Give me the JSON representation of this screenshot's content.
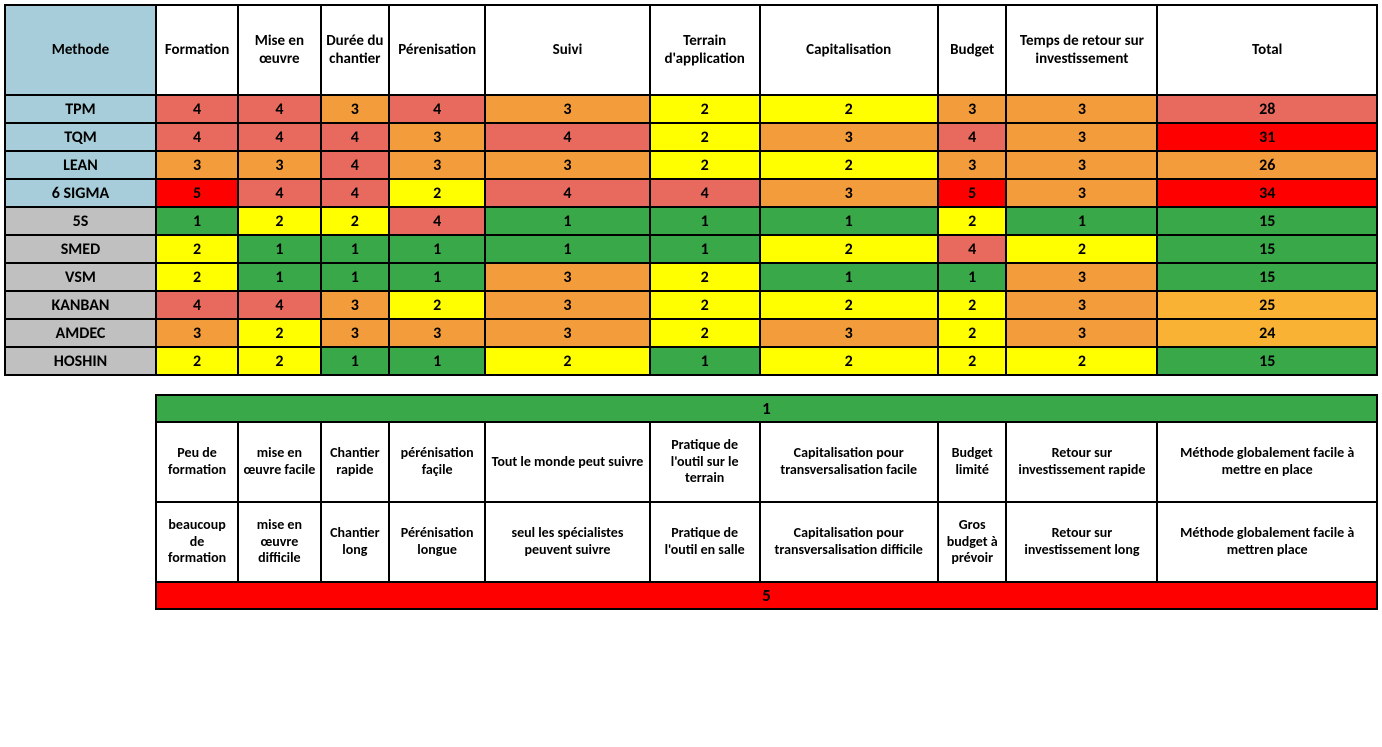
{
  "palette": {
    "header_methode": "#a6cdd9",
    "row_label_blue": "#a6cdd9",
    "row_label_grey": "#c0c0c0",
    "green": "#39a849",
    "yellow": "#ffff00",
    "orange": "#f39c3c",
    "salmon": "#e86a5e",
    "red": "#ff0000",
    "total_amber": "#f9b233",
    "white": "#ffffff"
  },
  "table": {
    "type": "table",
    "col_widths_pct": [
      11,
      6,
      6,
      5,
      7,
      12,
      8,
      13,
      5,
      11,
      16
    ],
    "headers": [
      "Methode",
      "Formation",
      "Mise en œuvre",
      "Durée du chantier",
      "Pérenisation",
      "Suivi",
      "Terrain d'application",
      "Capitalisation",
      "Budget",
      "Temps de retour sur investissement",
      "Total"
    ],
    "header_bg": [
      "header_methode",
      "white",
      "white",
      "white",
      "white",
      "white",
      "white",
      "white",
      "white",
      "white",
      "white"
    ],
    "rows": [
      {
        "label": "TPM",
        "label_bg": "row_label_blue",
        "cells": [
          4,
          4,
          3,
          4,
          3,
          2,
          2,
          3,
          3,
          28
        ],
        "cell_bg": [
          "salmon",
          "salmon",
          "orange",
          "salmon",
          "orange",
          "yellow",
          "yellow",
          "orange",
          "orange",
          "salmon"
        ]
      },
      {
        "label": "TQM",
        "label_bg": "row_label_blue",
        "cells": [
          4,
          4,
          4,
          3,
          4,
          2,
          3,
          4,
          3,
          31
        ],
        "cell_bg": [
          "salmon",
          "salmon",
          "salmon",
          "orange",
          "salmon",
          "yellow",
          "orange",
          "salmon",
          "orange",
          "red"
        ]
      },
      {
        "label": "LEAN",
        "label_bg": "row_label_blue",
        "cells": [
          3,
          3,
          4,
          3,
          3,
          2,
          2,
          3,
          3,
          26
        ],
        "cell_bg": [
          "orange",
          "orange",
          "salmon",
          "orange",
          "orange",
          "yellow",
          "yellow",
          "orange",
          "orange",
          "orange"
        ]
      },
      {
        "label": "6 SIGMA",
        "label_bg": "row_label_blue",
        "cells": [
          5,
          4,
          4,
          2,
          4,
          4,
          3,
          5,
          3,
          34
        ],
        "cell_bg": [
          "red",
          "salmon",
          "salmon",
          "yellow",
          "salmon",
          "salmon",
          "orange",
          "red",
          "orange",
          "red"
        ]
      },
      {
        "label": "5S",
        "label_bg": "row_label_grey",
        "cells": [
          1,
          2,
          2,
          4,
          1,
          1,
          1,
          2,
          1,
          15
        ],
        "cell_bg": [
          "green",
          "yellow",
          "yellow",
          "salmon",
          "green",
          "green",
          "green",
          "yellow",
          "green",
          "green"
        ]
      },
      {
        "label": "SMED",
        "label_bg": "row_label_grey",
        "cells": [
          2,
          1,
          1,
          1,
          1,
          1,
          2,
          4,
          2,
          15
        ],
        "cell_bg": [
          "yellow",
          "green",
          "green",
          "green",
          "green",
          "green",
          "yellow",
          "salmon",
          "yellow",
          "green"
        ]
      },
      {
        "label": "VSM",
        "label_bg": "row_label_grey",
        "cells": [
          2,
          1,
          1,
          1,
          3,
          2,
          1,
          1,
          3,
          15
        ],
        "cell_bg": [
          "yellow",
          "green",
          "green",
          "green",
          "orange",
          "yellow",
          "green",
          "green",
          "orange",
          "green"
        ]
      },
      {
        "label": "KANBAN",
        "label_bg": "row_label_grey",
        "cells": [
          4,
          4,
          3,
          2,
          3,
          2,
          2,
          2,
          3,
          25
        ],
        "cell_bg": [
          "salmon",
          "salmon",
          "orange",
          "yellow",
          "orange",
          "yellow",
          "yellow",
          "yellow",
          "orange",
          "total_amber"
        ]
      },
      {
        "label": "AMDEC",
        "label_bg": "row_label_grey",
        "cells": [
          3,
          2,
          3,
          3,
          3,
          2,
          3,
          2,
          3,
          24
        ],
        "cell_bg": [
          "orange",
          "yellow",
          "orange",
          "orange",
          "orange",
          "yellow",
          "orange",
          "yellow",
          "orange",
          "total_amber"
        ]
      },
      {
        "label": "HOSHIN",
        "label_bg": "row_label_grey",
        "cells": [
          2,
          2,
          1,
          1,
          2,
          1,
          2,
          2,
          2,
          15
        ],
        "cell_bg": [
          "yellow",
          "yellow",
          "green",
          "green",
          "yellow",
          "green",
          "yellow",
          "yellow",
          "yellow",
          "green"
        ]
      }
    ]
  },
  "legend": {
    "bar_top": {
      "value": "1",
      "bg": "green"
    },
    "bar_bottom": {
      "value": "5",
      "bg": "red"
    },
    "low": [
      "Peu de formation",
      "mise en œuvre facile",
      "Chantier rapide",
      "pérénisation façile",
      "Tout le monde peut suivre",
      "Pratique de l'outil sur le terrain",
      "Capitalisation pour transversalisation facile",
      "Budget limité",
      "Retour sur investissement rapide",
      "Méthode globalement facile à mettre en place"
    ],
    "high": [
      "beaucoup de formation",
      "mise en œuvre difficile",
      "Chantier long",
      "Pérénisation longue",
      "seul les spécialistes peuvent suivre",
      "Pratique de l'outil en salle",
      "Capitalisation pour transversalisation difficile",
      "Gros budget à prévoir",
      "Retour sur investissement long",
      "Méthode globalement facile à mettren place"
    ]
  }
}
